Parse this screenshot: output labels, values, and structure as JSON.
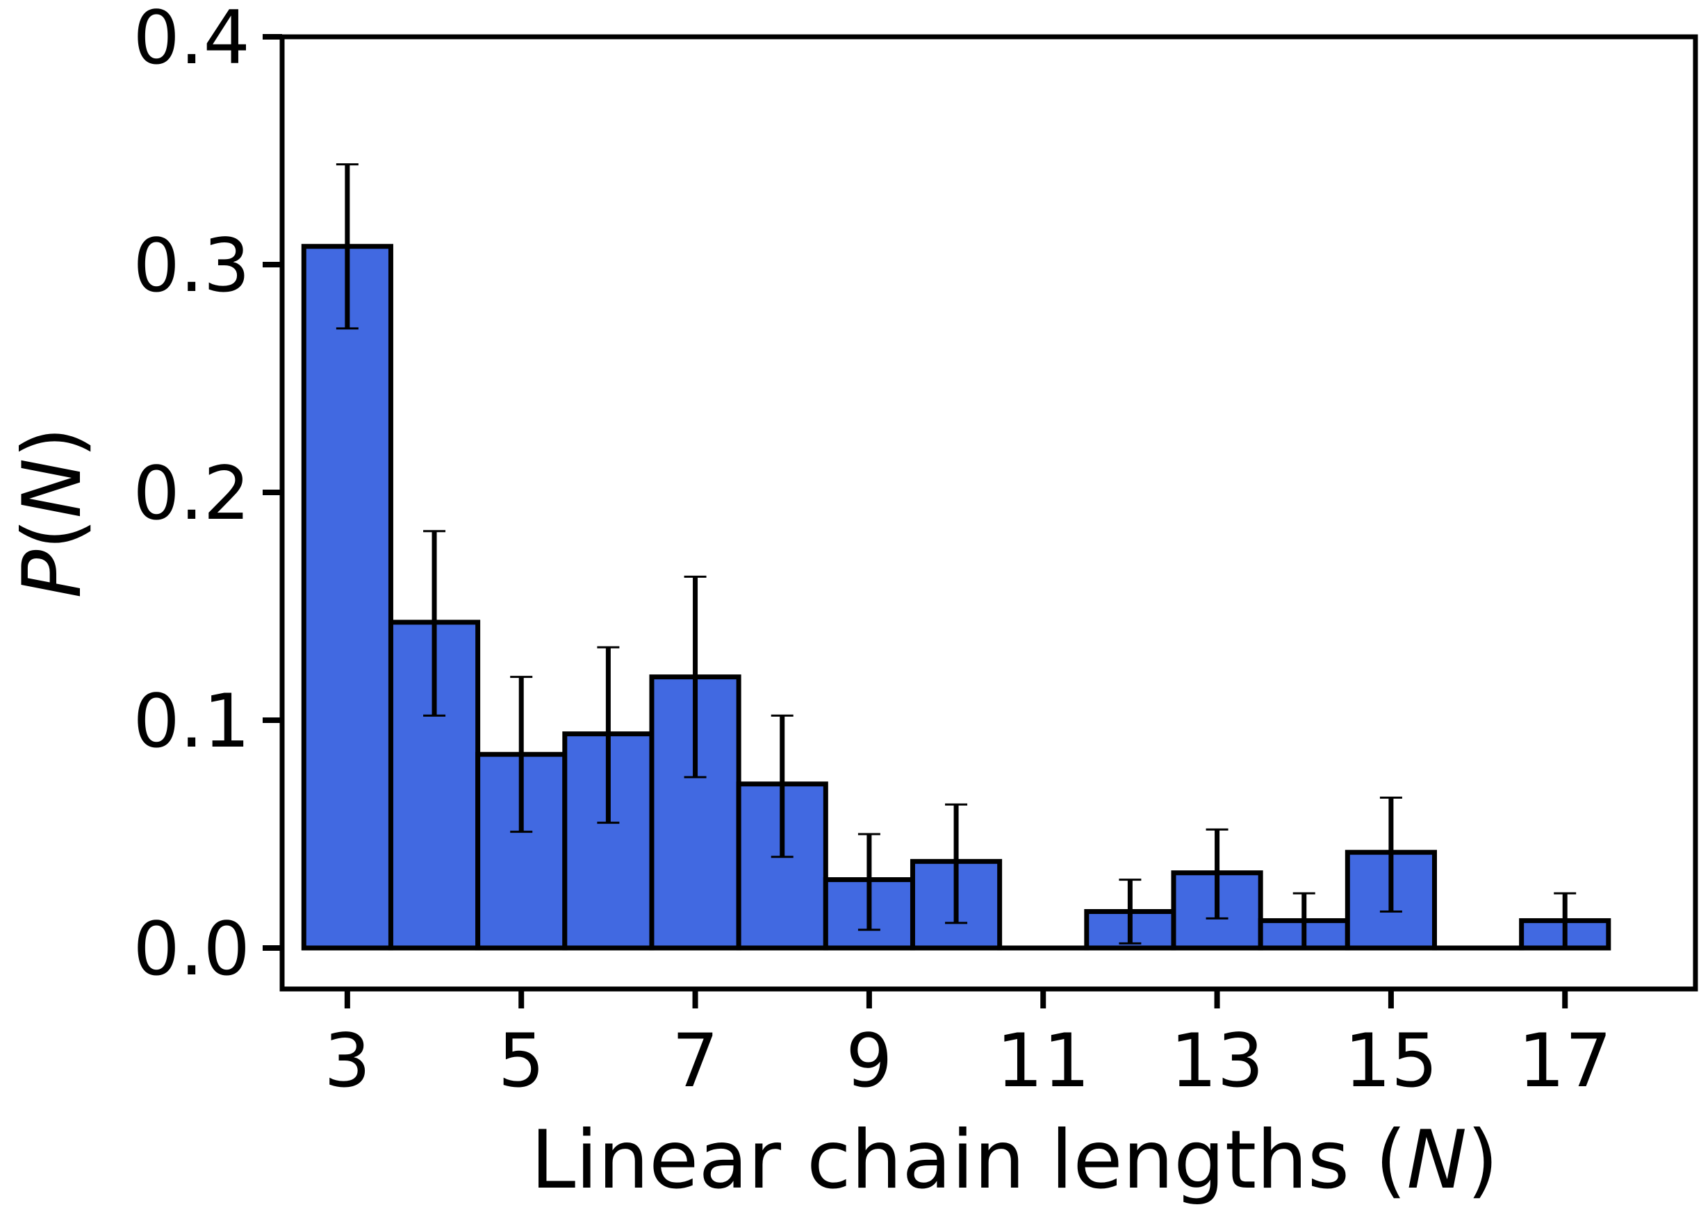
{
  "chart_data": {
    "type": "bar",
    "title": "",
    "xlabel": {
      "prefix": "Linear chain lengths (",
      "italic": "N",
      "suffix": ")"
    },
    "ylabel": {
      "prefix": "",
      "italic": "P",
      "suffix": "(",
      "italic2": "N",
      "suffix2": ")"
    },
    "xlim": [
      2.25,
      18.5
    ],
    "ylim": [
      -0.018,
      0.4
    ],
    "xticks": [
      3,
      5,
      7,
      9,
      11,
      13,
      15,
      17
    ],
    "xtick_labels": [
      "3",
      "5",
      "7",
      "9",
      "11",
      "13",
      "15",
      "17"
    ],
    "yticks": [
      0.0,
      0.1,
      0.2,
      0.3,
      0.4
    ],
    "ytick_labels": [
      "0.0",
      "0.1",
      "0.2",
      "0.3",
      "0.4"
    ],
    "bar_width": 1,
    "grid": false,
    "colors": {
      "bar_fill": "#4169E1",
      "bar_edge": "#000000",
      "error_bar": "#000000"
    },
    "x": [
      3,
      4,
      5,
      6,
      7,
      8,
      9,
      10,
      11,
      12,
      13,
      14,
      15,
      16,
      17
    ],
    "values": [
      0.308,
      0.143,
      0.085,
      0.094,
      0.119,
      0.072,
      0.03,
      0.038,
      0.0,
      0.016,
      0.033,
      0.012,
      0.042,
      0.0,
      0.012
    ],
    "error_low": [
      0.272,
      0.102,
      0.051,
      0.055,
      0.075,
      0.04,
      0.008,
      0.011,
      null,
      0.002,
      0.013,
      0.0,
      0.016,
      null,
      0.0
    ],
    "error_high": [
      0.344,
      0.183,
      0.119,
      0.132,
      0.163,
      0.102,
      0.05,
      0.063,
      null,
      0.03,
      0.052,
      0.024,
      0.066,
      null,
      0.024
    ]
  }
}
